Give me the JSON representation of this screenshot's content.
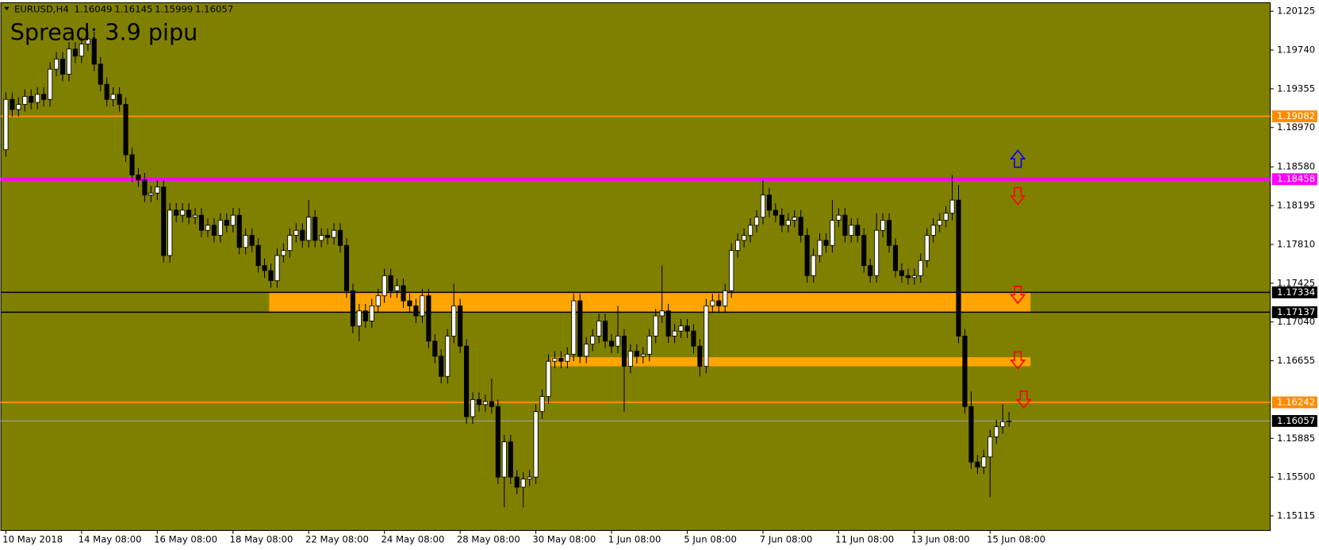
{
  "chart_data": {
    "type": "candlestick",
    "symbol": "EURUSD,H4",
    "header_ohlc": [
      1.16049,
      1.16145,
      1.15999,
      1.16057
    ],
    "spread_text": "Spread: 3.9 pipu",
    "background": "#808000",
    "bull_color": "#ffffff",
    "bear_color": "#000000",
    "ylim": [
      1.1497,
      1.2021
    ],
    "yticks": [
      1.20125,
      {
        "value": 1.1974,
        "label": "1.19740"
      },
      1.19355,
      {
        "value": 1.1897,
        "label": "1.18970"
      },
      {
        "value": 1.1858,
        "label": "1.18580"
      },
      1.18195,
      {
        "value": 1.1781,
        "label": "1.17810"
      },
      1.17425,
      {
        "value": 1.1704,
        "label": "1.17040"
      },
      1.16655,
      1.15885,
      {
        "value": 1.155,
        "label": "1.15500"
      },
      1.15115
    ],
    "levels": [
      {
        "value": 1.19082,
        "color": "#ff8c00",
        "width": 2
      },
      {
        "value": 1.18458,
        "color": "#ff00ff",
        "width": 4
      },
      {
        "value": 1.17334,
        "color": "#000000",
        "width": 1.5
      },
      {
        "value": 1.17137,
        "color": "#000000",
        "width": 1.5
      },
      {
        "value": 1.16242,
        "color": "#ff8c00",
        "width": 2
      },
      {
        "value": 1.16057,
        "color": "#a0a0a0",
        "width": 1
      }
    ],
    "zones": [
      {
        "top": 1.17334,
        "bottom": 1.17137,
        "color": "#ffa500"
      },
      {
        "top": 1.1669,
        "bottom": 1.166,
        "color": "#ffa500"
      }
    ],
    "signals": [
      {
        "dir": "up",
        "color": "#0000ff",
        "price": 1.1866
      },
      {
        "dir": "down",
        "color": "#ff0000",
        "price": 1.1829
      },
      {
        "dir": "down",
        "color": "#ff0000",
        "price": 1.1731
      },
      {
        "dir": "down",
        "color": "#ff0000",
        "price": 1.1666
      },
      {
        "dir": "down",
        "color": "#ff0000",
        "price": 1.1627
      }
    ],
    "categories": [
      "10 May 2018",
      null,
      null,
      null,
      null,
      null,
      null,
      null,
      null,
      null,
      null,
      null,
      "14 May 08:00",
      null,
      null,
      null,
      null,
      null,
      null,
      null,
      null,
      null,
      null,
      null,
      "16 May 08:00",
      null,
      null,
      null,
      null,
      null,
      null,
      null,
      null,
      null,
      null,
      null,
      "18 May 08:00",
      null,
      null,
      null,
      null,
      null,
      null,
      null,
      null,
      null,
      null,
      null,
      "22 May 08:00",
      null,
      null,
      null,
      null,
      null,
      null,
      null,
      null,
      null,
      null,
      null,
      "24 May 08:00",
      null,
      null,
      null,
      null,
      null,
      null,
      null,
      null,
      null,
      null,
      null,
      "28 May 08:00",
      null,
      null,
      null,
      null,
      null,
      null,
      null,
      null,
      null,
      null,
      null,
      "30 May 08:00",
      null,
      null,
      null,
      null,
      null,
      null,
      null,
      null,
      null,
      null,
      null,
      "1 Jun 08:00",
      null,
      null,
      null,
      null,
      null,
      null,
      null,
      null,
      null,
      null,
      null,
      "5 Jun 08:00",
      null,
      null,
      null,
      null,
      null,
      null,
      null,
      null,
      null,
      null,
      null,
      "7 Jun 08:00",
      null,
      null,
      null,
      null,
      null,
      null,
      null,
      null,
      null,
      null,
      null,
      "11 Jun 08:00",
      null,
      null,
      null,
      null,
      null,
      null,
      null,
      null,
      null,
      null,
      null,
      "13 Jun 08:00",
      null,
      null,
      null,
      null,
      null,
      null,
      null,
      null,
      null,
      null,
      null,
      "15 Jun 08:00",
      null,
      null,
      null
    ],
    "ohlc": [
      [
        1.1875,
        1.1932,
        1.1868,
        1.1925
      ],
      [
        1.1925,
        1.1932,
        1.1908,
        1.1915
      ],
      [
        1.1915,
        1.1927,
        1.1908,
        1.192
      ],
      [
        1.192,
        1.1935,
        1.1913,
        1.1928
      ],
      [
        1.1928,
        1.1935,
        1.1915,
        1.1922
      ],
      [
        1.1922,
        1.1937,
        1.1915,
        1.193
      ],
      [
        1.193,
        1.1937,
        1.1918,
        1.1925
      ],
      [
        1.1925,
        1.1962,
        1.1918,
        1.1955
      ],
      [
        1.1955,
        1.1972,
        1.1948,
        1.1965
      ],
      [
        1.1965,
        1.1972,
        1.1943,
        1.195
      ],
      [
        1.195,
        1.1982,
        1.1943,
        1.1975
      ],
      [
        1.1975,
        1.1982,
        1.1961,
        1.1968
      ],
      [
        1.1968,
        1.1987,
        1.1961,
        1.198
      ],
      [
        1.198,
        1.1992,
        1.1973,
        1.1985
      ],
      [
        1.1985,
        1.1992,
        1.1953,
        1.196
      ],
      [
        1.196,
        1.1967,
        1.1933,
        1.194
      ],
      [
        1.194,
        1.1947,
        1.1918,
        1.1925
      ],
      [
        1.1925,
        1.1937,
        1.1918,
        1.193
      ],
      [
        1.193,
        1.1937,
        1.1913,
        1.192
      ],
      [
        1.192,
        1.1927,
        1.1863,
        1.187
      ],
      [
        1.187,
        1.1877,
        1.1843,
        1.185
      ],
      [
        1.185,
        1.1857,
        1.1838,
        1.1845
      ],
      [
        1.1845,
        1.1852,
        1.1823,
        1.183
      ],
      [
        1.183,
        1.1839,
        1.1823,
        1.1832
      ],
      [
        1.1832,
        1.1845,
        1.1825,
        1.1838
      ],
      [
        1.1838,
        1.1845,
        1.1763,
        1.177
      ],
      [
        1.177,
        1.1822,
        1.1763,
        1.1815
      ],
      [
        1.1815,
        1.1822,
        1.1803,
        1.181
      ],
      [
        1.181,
        1.1822,
        1.1803,
        1.1815
      ],
      [
        1.1815,
        1.1822,
        1.1801,
        1.1808
      ],
      [
        1.1808,
        1.1817,
        1.1801,
        1.181
      ],
      [
        1.181,
        1.1817,
        1.1788,
        1.1795
      ],
      [
        1.1795,
        1.1807,
        1.1788,
        1.18
      ],
      [
        1.18,
        1.1807,
        1.1783,
        1.179
      ],
      [
        1.179,
        1.1812,
        1.1783,
        1.1805
      ],
      [
        1.1805,
        1.1812,
        1.1793,
        1.18
      ],
      [
        1.18,
        1.1817,
        1.1793,
        1.181
      ],
      [
        1.181,
        1.1817,
        1.1771,
        1.1778
      ],
      [
        1.1778,
        1.1797,
        1.1771,
        1.179
      ],
      [
        1.179,
        1.1797,
        1.1773,
        1.178
      ],
      [
        1.178,
        1.1787,
        1.1753,
        1.176
      ],
      [
        1.176,
        1.1767,
        1.1748,
        1.1755
      ],
      [
        1.1755,
        1.1762,
        1.1738,
        1.1745
      ],
      [
        1.1745,
        1.1777,
        1.1738,
        1.177
      ],
      [
        1.177,
        1.1782,
        1.1763,
        1.1775
      ],
      [
        1.1775,
        1.1797,
        1.1768,
        1.179
      ],
      [
        1.179,
        1.1802,
        1.1783,
        1.1795
      ],
      [
        1.1795,
        1.1802,
        1.1778,
        1.1785
      ],
      [
        1.1785,
        1.1825,
        1.1778,
        1.1808
      ],
      [
        1.1808,
        1.1815,
        1.1778,
        1.1785
      ],
      [
        1.1785,
        1.1797,
        1.1778,
        1.179
      ],
      [
        1.179,
        1.1797,
        1.1781,
        1.1788
      ],
      [
        1.1788,
        1.1802,
        1.1781,
        1.1795
      ],
      [
        1.1795,
        1.1802,
        1.1773,
        1.178
      ],
      [
        1.178,
        1.1787,
        1.1728,
        1.1735
      ],
      [
        1.1735,
        1.1742,
        1.1693,
        1.17
      ],
      [
        1.17,
        1.1722,
        1.1685,
        1.1715
      ],
      [
        1.1715,
        1.1722,
        1.1698,
        1.1705
      ],
      [
        1.1705,
        1.1727,
        1.1698,
        1.172
      ],
      [
        1.172,
        1.1737,
        1.1713,
        1.173
      ],
      [
        1.173,
        1.1757,
        1.1723,
        1.175
      ],
      [
        1.175,
        1.1757,
        1.1728,
        1.1735
      ],
      [
        1.1735,
        1.1747,
        1.1728,
        1.174
      ],
      [
        1.174,
        1.1747,
        1.1718,
        1.1725
      ],
      [
        1.1725,
        1.1732,
        1.1713,
        1.172
      ],
      [
        1.172,
        1.1727,
        1.1703,
        1.171
      ],
      [
        1.171,
        1.1737,
        1.1703,
        1.173
      ],
      [
        1.173,
        1.1737,
        1.1678,
        1.1685
      ],
      [
        1.1685,
        1.1692,
        1.1663,
        1.167
      ],
      [
        1.167,
        1.1677,
        1.1643,
        1.165
      ],
      [
        1.165,
        1.1697,
        1.1643,
        1.169
      ],
      [
        1.169,
        1.1742,
        1.1683,
        1.172
      ],
      [
        1.172,
        1.1727,
        1.1673,
        1.168
      ],
      [
        1.168,
        1.1687,
        1.1603,
        1.161
      ],
      [
        1.161,
        1.1634,
        1.1603,
        1.1627
      ],
      [
        1.1627,
        1.1634,
        1.1615,
        1.1622
      ],
      [
        1.1622,
        1.1632,
        1.1615,
        1.1625
      ],
      [
        1.1625,
        1.1648,
        1.1613,
        1.162
      ],
      [
        1.162,
        1.1627,
        1.1543,
        1.155
      ],
      [
        1.155,
        1.1592,
        1.152,
        1.1585
      ],
      [
        1.1585,
        1.1592,
        1.1543,
        1.155
      ],
      [
        1.155,
        1.1557,
        1.1533,
        1.154
      ],
      [
        1.154,
        1.1555,
        1.152,
        1.1548
      ],
      [
        1.1548,
        1.1557,
        1.1541,
        1.155
      ],
      [
        1.155,
        1.1622,
        1.1543,
        1.1615
      ],
      [
        1.1615,
        1.1637,
        1.1608,
        1.163
      ],
      [
        1.163,
        1.1672,
        1.1623,
        1.1665
      ],
      [
        1.1665,
        1.1675,
        1.1658,
        1.1668
      ],
      [
        1.1668,
        1.1675,
        1.1658,
        1.1665
      ],
      [
        1.1665,
        1.1679,
        1.1658,
        1.1672
      ],
      [
        1.1672,
        1.1732,
        1.1665,
        1.1725
      ],
      [
        1.1725,
        1.1732,
        1.1663,
        1.167
      ],
      [
        1.167,
        1.1689,
        1.1663,
        1.1682
      ],
      [
        1.1682,
        1.1697,
        1.1675,
        1.169
      ],
      [
        1.169,
        1.1712,
        1.1683,
        1.1705
      ],
      [
        1.1705,
        1.1712,
        1.1678,
        1.1685
      ],
      [
        1.1685,
        1.1692,
        1.1673,
        1.168
      ],
      [
        1.168,
        1.172,
        1.1673,
        1.169
      ],
      [
        1.169,
        1.1697,
        1.1615,
        1.166
      ],
      [
        1.166,
        1.1682,
        1.1653,
        1.1675
      ],
      [
        1.1675,
        1.1682,
        1.1663,
        1.167
      ],
      [
        1.167,
        1.1679,
        1.1663,
        1.1672
      ],
      [
        1.1672,
        1.1697,
        1.1665,
        1.169
      ],
      [
        1.169,
        1.1717,
        1.1683,
        1.171
      ],
      [
        1.171,
        1.176,
        1.1703,
        1.1715
      ],
      [
        1.1715,
        1.1722,
        1.1683,
        1.169
      ],
      [
        1.169,
        1.1702,
        1.1683,
        1.1695
      ],
      [
        1.1695,
        1.1707,
        1.1688,
        1.17
      ],
      [
        1.17,
        1.1707,
        1.1688,
        1.1695
      ],
      [
        1.1695,
        1.1702,
        1.1673,
        1.168
      ],
      [
        1.168,
        1.1687,
        1.165,
        1.166
      ],
      [
        1.166,
        1.1727,
        1.1653,
        1.172
      ],
      [
        1.172,
        1.1732,
        1.1713,
        1.1725
      ],
      [
        1.1725,
        1.1732,
        1.1713,
        1.172
      ],
      [
        1.172,
        1.1742,
        1.1713,
        1.1735
      ],
      [
        1.1735,
        1.1782,
        1.1728,
        1.1775
      ],
      [
        1.1775,
        1.1792,
        1.1768,
        1.1785
      ],
      [
        1.1785,
        1.1797,
        1.1778,
        1.179
      ],
      [
        1.179,
        1.1807,
        1.1783,
        1.18
      ],
      [
        1.18,
        1.1815,
        1.1793,
        1.1808
      ],
      [
        1.1808,
        1.1845,
        1.1801,
        1.183
      ],
      [
        1.183,
        1.1837,
        1.1808,
        1.1815
      ],
      [
        1.1815,
        1.1822,
        1.1803,
        1.181
      ],
      [
        1.181,
        1.1817,
        1.1793,
        1.18
      ],
      [
        1.18,
        1.1812,
        1.1793,
        1.1805
      ],
      [
        1.1805,
        1.1815,
        1.1798,
        1.1808
      ],
      [
        1.1808,
        1.1815,
        1.1783,
        1.179
      ],
      [
        1.179,
        1.1797,
        1.1743,
        1.175
      ],
      [
        1.175,
        1.1777,
        1.1743,
        1.177
      ],
      [
        1.177,
        1.1792,
        1.1763,
        1.1785
      ],
      [
        1.1785,
        1.1792,
        1.1773,
        1.178
      ],
      [
        1.178,
        1.1825,
        1.1773,
        1.1805
      ],
      [
        1.1805,
        1.1817,
        1.1798,
        1.181
      ],
      [
        1.181,
        1.1817,
        1.1783,
        1.179
      ],
      [
        1.179,
        1.1807,
        1.1783,
        1.18
      ],
      [
        1.18,
        1.1807,
        1.1783,
        1.179
      ],
      [
        1.179,
        1.1797,
        1.1753,
        1.176
      ],
      [
        1.176,
        1.1767,
        1.1743,
        1.175
      ],
      [
        1.175,
        1.1812,
        1.1743,
        1.1795
      ],
      [
        1.1795,
        1.1812,
        1.1788,
        1.1805
      ],
      [
        1.1805,
        1.1812,
        1.1773,
        1.178
      ],
      [
        1.178,
        1.1787,
        1.1748,
        1.1755
      ],
      [
        1.1755,
        1.1762,
        1.1743,
        1.175
      ],
      [
        1.175,
        1.1757,
        1.1741,
        1.1748
      ],
      [
        1.1748,
        1.1757,
        1.1741,
        1.175
      ],
      [
        1.175,
        1.1772,
        1.1743,
        1.1765
      ],
      [
        1.1765,
        1.1797,
        1.1758,
        1.179
      ],
      [
        1.179,
        1.1807,
        1.1783,
        1.18
      ],
      [
        1.18,
        1.1812,
        1.1793,
        1.1805
      ],
      [
        1.1805,
        1.1819,
        1.1798,
        1.1812
      ],
      [
        1.1812,
        1.185,
        1.1805,
        1.1825
      ],
      [
        1.1825,
        1.184,
        1.1683,
        1.169
      ],
      [
        1.169,
        1.1697,
        1.1613,
        1.162
      ],
      [
        1.162,
        1.1635,
        1.1558,
        1.1565
      ],
      [
        1.1565,
        1.1572,
        1.1553,
        1.156
      ],
      [
        1.156,
        1.1577,
        1.1553,
        1.157
      ],
      [
        1.157,
        1.1597,
        1.153,
        1.159
      ],
      [
        1.159,
        1.1607,
        1.1583,
        1.16
      ],
      [
        1.16,
        1.1622,
        1.1593,
        1.1605
      ],
      [
        1.16049,
        1.16145,
        1.15999,
        1.16057
      ]
    ]
  }
}
